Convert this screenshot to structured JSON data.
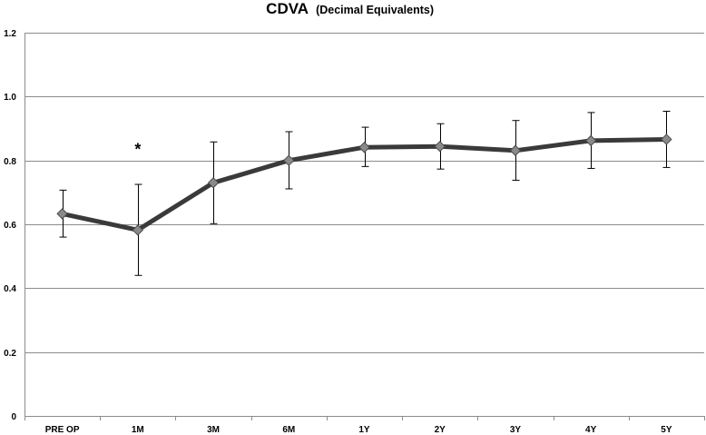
{
  "chart_data": {
    "type": "line",
    "title": "CDVA",
    "subtitle": "(Decimal Equivalents)",
    "xlabel": "",
    "ylabel": "",
    "categories": [
      "PRE OP",
      "1M",
      "3M",
      "6M",
      "1Y",
      "2Y",
      "3Y",
      "4Y",
      "5Y"
    ],
    "ylim": [
      0,
      1.2
    ],
    "yticks": [
      0,
      0.2,
      0.4,
      0.6,
      0.8,
      1.0,
      1.2
    ],
    "ytick_labels": [
      "0",
      "0.2",
      "0.4",
      "0.6",
      "0.8",
      "1.0",
      "1.2"
    ],
    "grid": true,
    "legend": "none",
    "series": [
      {
        "name": "CDVA",
        "values": [
          0.633,
          0.582,
          0.73,
          0.8,
          0.841,
          0.844,
          0.831,
          0.862,
          0.866
        ],
        "error_upper": [
          0.707,
          0.725,
          0.858,
          0.89,
          0.904,
          0.915,
          0.925,
          0.95,
          0.954
        ],
        "error_lower": [
          0.56,
          0.44,
          0.602,
          0.711,
          0.781,
          0.773,
          0.738,
          0.775,
          0.778
        ],
        "color": "#3a3a3a",
        "marker_color": "#8a8a8a"
      }
    ],
    "annotations": [
      {
        "text": "*",
        "category": "1M",
        "y": 0.84
      }
    ]
  }
}
